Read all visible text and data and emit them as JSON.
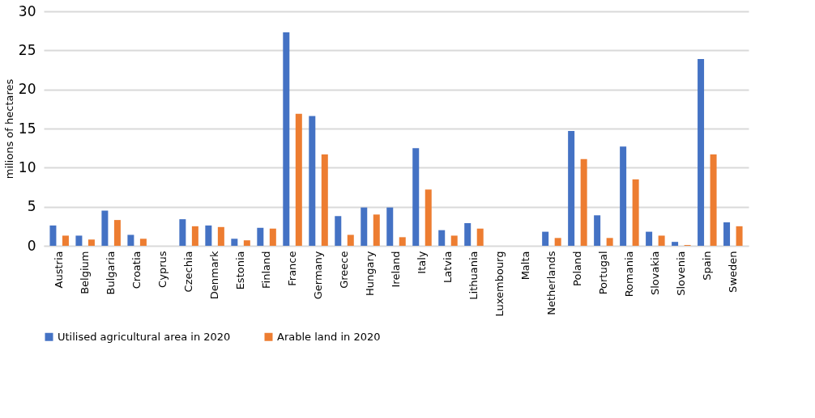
{
  "chart_data": {
    "type": "bar",
    "ylabel": "milions of hectares",
    "categories": [
      "Austria",
      "Belgium",
      "Bulgaria",
      "Croatia",
      "Cyprus",
      "Czechia",
      "Denmark",
      "Estonia",
      "Finland",
      "France",
      "Germany",
      "Greece",
      "Hungary",
      "Ireland",
      "Italy",
      "Latvia",
      "Lithuania",
      "Luxembourg",
      "Malta",
      "Netherlands",
      "Poland",
      "Portugal",
      "Romania",
      "Slovakia",
      "Slovenia",
      "Spain",
      "Sweden"
    ],
    "series": [
      {
        "name": "Utilised agricultural area in 2020",
        "color": "#4472c4",
        "values": [
          2.6,
          1.3,
          4.5,
          1.4,
          0,
          3.4,
          2.6,
          0.9,
          2.3,
          27.3,
          16.6,
          3.8,
          4.9,
          4.9,
          12.5,
          2.0,
          2.9,
          0,
          0,
          1.8,
          14.7,
          3.9,
          12.7,
          1.8,
          0.5,
          23.9,
          3.0
        ]
      },
      {
        "name": "Arable land in 2020",
        "color": "#ed7d31",
        "values": [
          1.3,
          0.8,
          3.3,
          0.9,
          0,
          2.5,
          2.4,
          0.7,
          2.2,
          16.9,
          11.7,
          1.4,
          4.0,
          1.1,
          7.2,
          1.3,
          2.2,
          0,
          0,
          1.0,
          11.1,
          1.0,
          8.5,
          1.3,
          0.1,
          11.7,
          2.5
        ]
      }
    ],
    "ylim": [
      0,
      30
    ],
    "yticks": [
      0,
      5,
      10,
      15,
      20,
      25,
      30
    ],
    "grid": "y",
    "legend": "bottom"
  }
}
